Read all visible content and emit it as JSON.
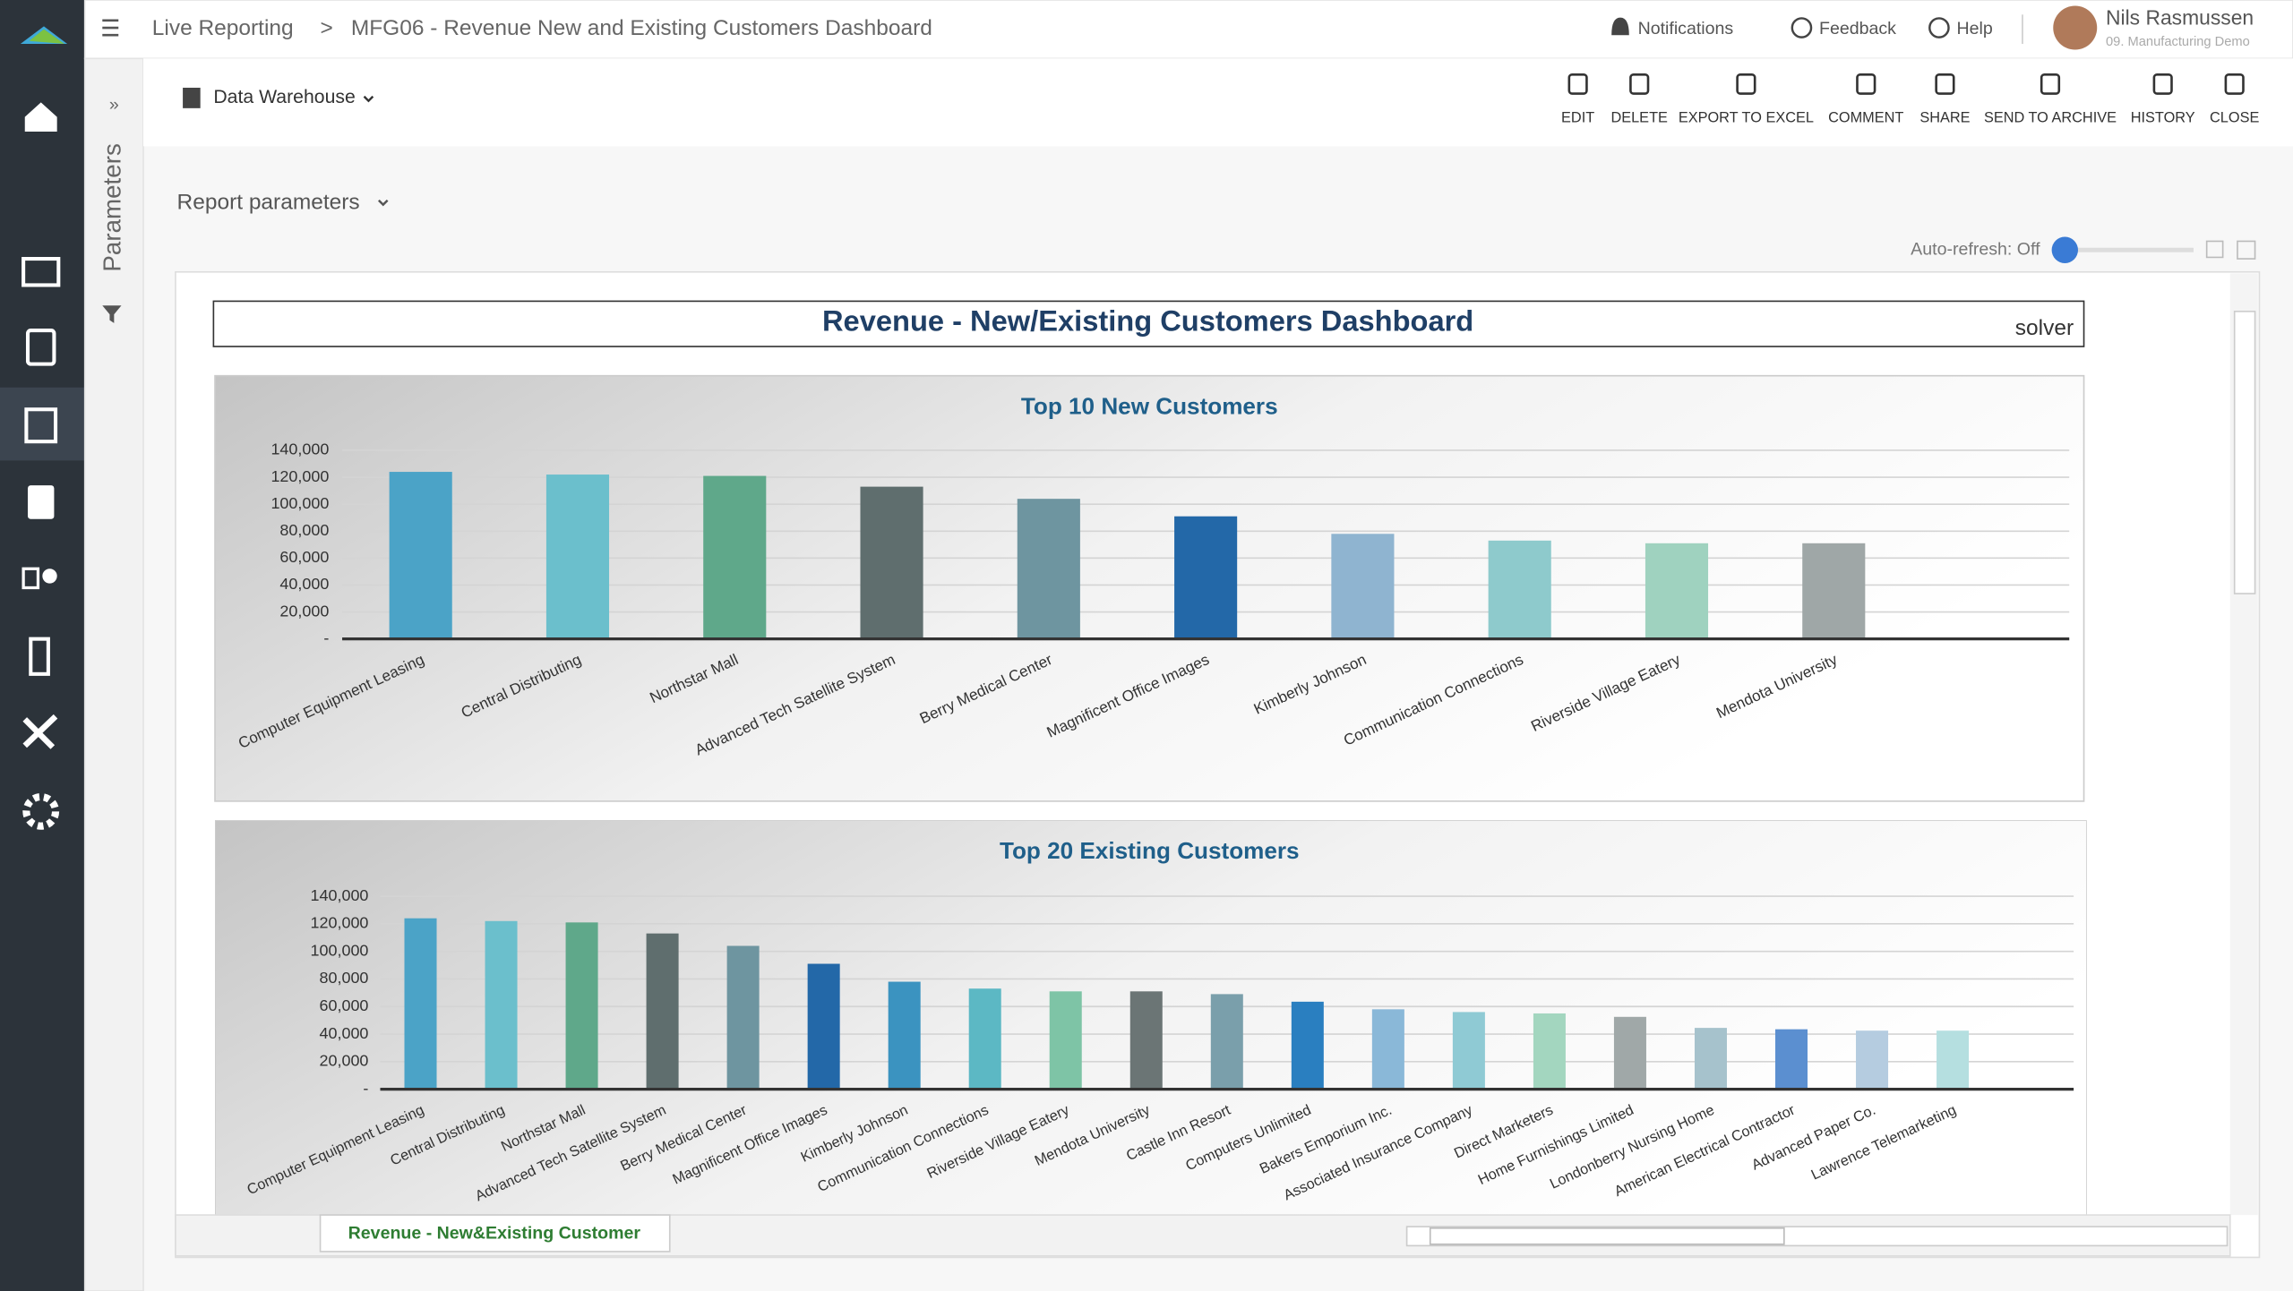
{
  "header": {
    "breadcrumb": "Live Reporting",
    "separator": ">",
    "title": "MFG06 - Revenue New and Existing Customers Dashboard",
    "notifications": "Notifications",
    "feedback": "Feedback",
    "help": "Help",
    "user": "Nils Rasmussen",
    "company": "09. Manufacturing Demo"
  },
  "toolbar": {
    "source": "Data Warehouse",
    "buttons": [
      "EDIT",
      "DELETE",
      "EXPORT TO EXCEL",
      "COMMENT",
      "SHARE",
      "SEND TO ARCHIVE",
      "HISTORY",
      "CLOSE"
    ]
  },
  "sidebar": {
    "parameters": "Parameters"
  },
  "report": {
    "parameters": "Report parameters",
    "auto_refresh": "Auto-refresh: Off",
    "title": "Revenue - New/Existing Customers Dashboard",
    "logo": "solver",
    "sheet_tab": "Revenue - New&Existing Customer"
  },
  "chart_data": [
    {
      "type": "bar",
      "title": "Top 10 New Customers",
      "categories": [
        "Computer Equipment Leasing",
        "Central Distributing",
        "Northstar Mall",
        "Advanced Tech Satellite System",
        "Berry Medical Center",
        "Magnificent Office Images",
        "Kimberly Johnson",
        "Communication Connections",
        "Riverside Village Eatery",
        "Mendota University"
      ],
      "values": [
        124000,
        122000,
        121000,
        113000,
        104000,
        91000,
        78000,
        73000,
        71000,
        71000
      ],
      "colors": [
        "#4ba3c7",
        "#6bbfcc",
        "#5fa88a",
        "#5f6e6e",
        "#6e95a0",
        "#2368a8",
        "#8fb4d0",
        "#8ecacc",
        "#9fd2bf",
        "#9fa7a7"
      ],
      "ylim": [
        0,
        140000
      ],
      "yticks": [
        {
          "value": 0,
          "label": "-"
        },
        {
          "value": 20000,
          "label": "20,000"
        },
        {
          "value": 40000,
          "label": "40,000"
        },
        {
          "value": 60000,
          "label": "60,000"
        },
        {
          "value": 80000,
          "label": "80,000"
        },
        {
          "value": 100000,
          "label": "100,000"
        },
        {
          "value": 120000,
          "label": "120,000"
        },
        {
          "value": 140000,
          "label": "140,000"
        }
      ],
      "grid": true
    },
    {
      "type": "bar",
      "title": "Top 20 Existing Customers",
      "categories": [
        "Computer Equipment Leasing",
        "Central Distributing",
        "Northstar Mall",
        "Advanced Tech Satellite System",
        "Berry Medical Center",
        "Magnificent Office Images",
        "Kimberly Johnson",
        "Communication Connections",
        "Riverside Village Eatery",
        "Mendota University",
        "Castle Inn Resort",
        "Computers Unlimited",
        "Bakers Emporium Inc.",
        "Associated Insurance Company",
        "Direct Marketers",
        "Home Furnishings Limited",
        "Londonberry Nursing Home",
        "American Electrical Contractor",
        "Advanced Paper Co.",
        "Lawrence Telemarketing"
      ],
      "values": [
        124000,
        122000,
        121000,
        113000,
        104000,
        91000,
        78000,
        73000,
        71000,
        71000,
        69000,
        63500,
        58000,
        56000,
        55000,
        52500,
        44500,
        43500,
        42500,
        42500
      ],
      "colors": [
        "#4ba3c7",
        "#6bbfcc",
        "#5fa88a",
        "#5f6e6e",
        "#6e95a0",
        "#2368a8",
        "#3b93c0",
        "#5cb8c4",
        "#7ec4a6",
        "#6b7575",
        "#7a9fab",
        "#2a7fc0",
        "#8ab8d8",
        "#8fcad4",
        "#a3d6bf",
        "#a0a8a8",
        "#a6c2cc",
        "#5b8fd0",
        "#b5cce0",
        "#b5dfe0"
      ],
      "ylim": [
        0,
        140000
      ],
      "yticks": [
        {
          "value": 0,
          "label": "-"
        },
        {
          "value": 20000,
          "label": "20,000"
        },
        {
          "value": 40000,
          "label": "40,000"
        },
        {
          "value": 60000,
          "label": "60,000"
        },
        {
          "value": 80000,
          "label": "80,000"
        },
        {
          "value": 100000,
          "label": "100,000"
        },
        {
          "value": 120000,
          "label": "120,000"
        },
        {
          "value": 140000,
          "label": "140,000"
        }
      ],
      "grid": true
    }
  ]
}
